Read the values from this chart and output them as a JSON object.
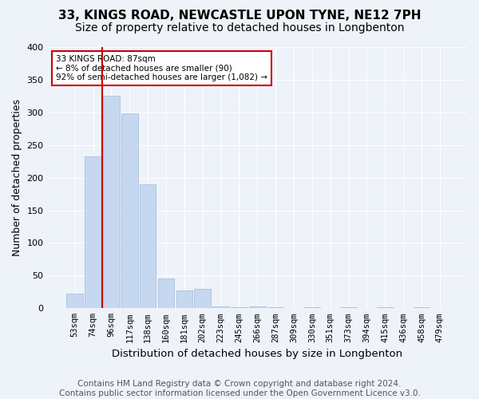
{
  "title": "33, KINGS ROAD, NEWCASTLE UPON TYNE, NE12 7PH",
  "subtitle": "Size of property relative to detached houses in Longbenton",
  "xlabel": "Distribution of detached houses by size in Longbenton",
  "ylabel": "Number of detached properties",
  "bar_values": [
    22,
    232,
    325,
    298,
    190,
    45,
    27,
    30,
    3,
    1,
    3,
    1,
    0,
    1,
    0,
    1,
    0,
    1,
    0,
    1,
    0
  ],
  "bar_labels": [
    "53sqm",
    "74sqm",
    "96sqm",
    "117sqm",
    "138sqm",
    "160sqm",
    "181sqm",
    "202sqm",
    "223sqm",
    "245sqm",
    "266sqm",
    "287sqm",
    "309sqm",
    "330sqm",
    "351sqm",
    "373sqm",
    "394sqm",
    "415sqm",
    "436sqm",
    "458sqm",
    "479sqm"
  ],
  "bar_color": "#c5d8f0",
  "bar_edge_color": "#a0b8d8",
  "marker_line_color": "#cc0000",
  "annotation_box_color": "#cc0000",
  "annotation_text_line1": "33 KINGS ROAD: 87sqm",
  "annotation_text_line2": "← 8% of detached houses are smaller (90)",
  "annotation_text_line3": "92% of semi-detached houses are larger (1,082) →",
  "ylim": [
    0,
    400
  ],
  "yticks": [
    0,
    50,
    100,
    150,
    200,
    250,
    300,
    350,
    400
  ],
  "footer_line1": "Contains HM Land Registry data © Crown copyright and database right 2024.",
  "footer_line2": "Contains public sector information licensed under the Open Government Licence v3.0.",
  "bg_color": "#eef2f9",
  "grid_color": "#ffffff",
  "title_fontsize": 11,
  "subtitle_fontsize": 10,
  "axis_label_fontsize": 9,
  "tick_fontsize": 7.5,
  "footer_fontsize": 7.5
}
